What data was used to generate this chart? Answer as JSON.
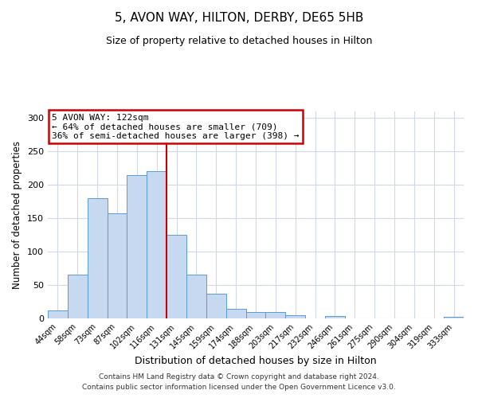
{
  "title": "5, AVON WAY, HILTON, DERBY, DE65 5HB",
  "subtitle": "Size of property relative to detached houses in Hilton",
  "xlabel": "Distribution of detached houses by size in Hilton",
  "ylabel": "Number of detached properties",
  "bar_labels": [
    "44sqm",
    "58sqm",
    "73sqm",
    "87sqm",
    "102sqm",
    "116sqm",
    "131sqm",
    "145sqm",
    "159sqm",
    "174sqm",
    "188sqm",
    "203sqm",
    "217sqm",
    "232sqm",
    "246sqm",
    "261sqm",
    "275sqm",
    "290sqm",
    "304sqm",
    "319sqm",
    "333sqm"
  ],
  "bar_values": [
    12,
    65,
    180,
    157,
    215,
    220,
    125,
    65,
    37,
    14,
    10,
    10,
    5,
    0,
    3,
    0,
    0,
    0,
    0,
    0,
    2
  ],
  "bar_color": "#c6d9f0",
  "bar_edge_color": "#5b9bd5",
  "vline_x": 5.5,
  "vline_color": "#cc0000",
  "ylim": [
    0,
    310
  ],
  "yticks": [
    0,
    50,
    100,
    150,
    200,
    250,
    300
  ],
  "annotation_title": "5 AVON WAY: 122sqm",
  "annotation_line1": "← 64% of detached houses are smaller (709)",
  "annotation_line2": "36% of semi-detached houses are larger (398) →",
  "annotation_box_color": "#ffffff",
  "annotation_box_edge": "#cc0000",
  "footer1": "Contains HM Land Registry data © Crown copyright and database right 2024.",
  "footer2": "Contains public sector information licensed under the Open Government Licence v3.0.",
  "background_color": "#ffffff",
  "grid_color": "#d0d8e8"
}
